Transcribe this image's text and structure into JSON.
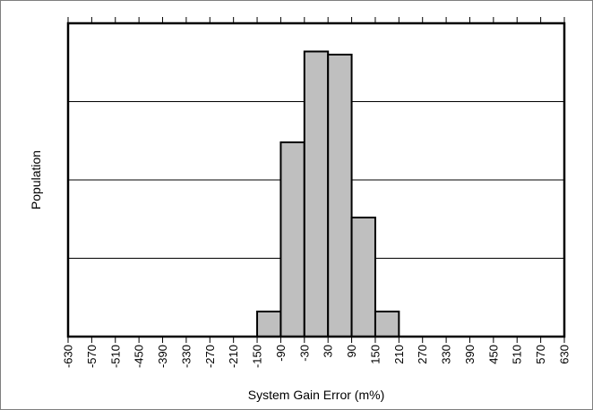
{
  "chart_data": {
    "type": "bar",
    "title": "",
    "xlabel": "System Gain Error (m%)",
    "ylabel": "Population",
    "x_ticks": [
      -630,
      -570,
      -510,
      -450,
      -390,
      -330,
      -270,
      -210,
      -150,
      -90,
      -30,
      30,
      90,
      150,
      210,
      270,
      330,
      390,
      450,
      510,
      570,
      630
    ],
    "xlim": [
      -630,
      630
    ],
    "ylim": [
      0,
      100
    ],
    "bin_width": 60,
    "bins": [
      {
        "start": -150,
        "end": -90,
        "value": 8
      },
      {
        "start": -90,
        "end": -30,
        "value": 62
      },
      {
        "start": -30,
        "end": 30,
        "value": 91
      },
      {
        "start": 30,
        "end": 90,
        "value": 90
      },
      {
        "start": 90,
        "end": 150,
        "value": 38
      },
      {
        "start": 150,
        "end": 210,
        "value": 8
      }
    ],
    "y_gridlines": [
      25,
      50,
      75
    ],
    "grid": "horizontal",
    "legend": "none",
    "bar_color": "#bfbfbf",
    "edge_color": "#000000"
  }
}
